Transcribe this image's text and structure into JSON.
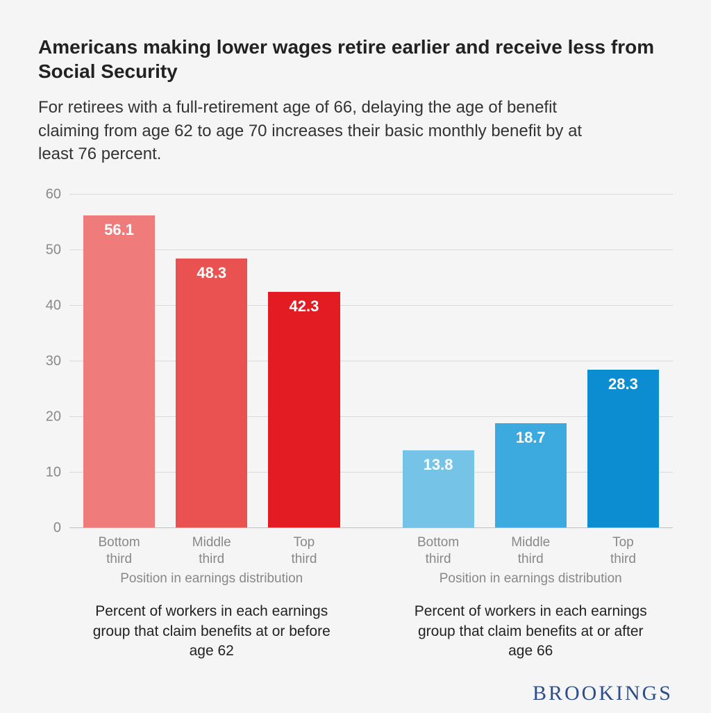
{
  "title": "Americans making lower wages retire earlier and receive less from Social Security",
  "subtitle": "For retirees with a full-retirement age of 66, delaying the age of benefit claiming from age 62 to age 70 increases their basic monthly benefit by at least 76 percent.",
  "chart": {
    "type": "bar",
    "ylim": [
      0,
      60
    ],
    "ytick_step": 10,
    "yticks": [
      0,
      10,
      20,
      30,
      40,
      50,
      60
    ],
    "grid_color": "#d9d9d9",
    "axis_line_color": "#bfbfbf",
    "background_color": "#f5f5f5",
    "tick_fontsize": 20,
    "tick_color": "#888888",
    "value_label_fontsize": 22,
    "value_label_color": "#ffffff",
    "groups": [
      {
        "axis_title": "Position in earnings distribution",
        "caption": "Percent of workers in each earnings group that claim benefits at or before age 62",
        "bars": [
          {
            "label_line1": "Bottom",
            "label_line2": "third",
            "value": 56.1,
            "value_text": "56.1",
            "color": "#f07b7b"
          },
          {
            "label_line1": "Middle",
            "label_line2": "third",
            "value": 48.3,
            "value_text": "48.3",
            "color": "#ea5252"
          },
          {
            "label_line1": "Top",
            "label_line2": "third",
            "value": 42.3,
            "value_text": "42.3",
            "color": "#e31b23"
          }
        ]
      },
      {
        "axis_title": "Position in earnings distribution",
        "caption": "Percent of workers in each earnings group that claim benefits at or after age 66",
        "bars": [
          {
            "label_line1": "Bottom",
            "label_line2": "third",
            "value": 13.8,
            "value_text": "13.8",
            "color": "#75c4e8"
          },
          {
            "label_line1": "Middle",
            "label_line2": "third",
            "value": 18.7,
            "value_text": "18.7",
            "color": "#3caade"
          },
          {
            "label_line1": "Top",
            "label_line2": "third",
            "value": 28.3,
            "value_text": "28.3",
            "color": "#0d8dd1"
          }
        ]
      }
    ]
  },
  "brand": "BROOKINGS",
  "brand_color": "#2d4e8a",
  "title_fontsize": 28,
  "subtitle_fontsize": 24,
  "caption_fontsize": 21
}
